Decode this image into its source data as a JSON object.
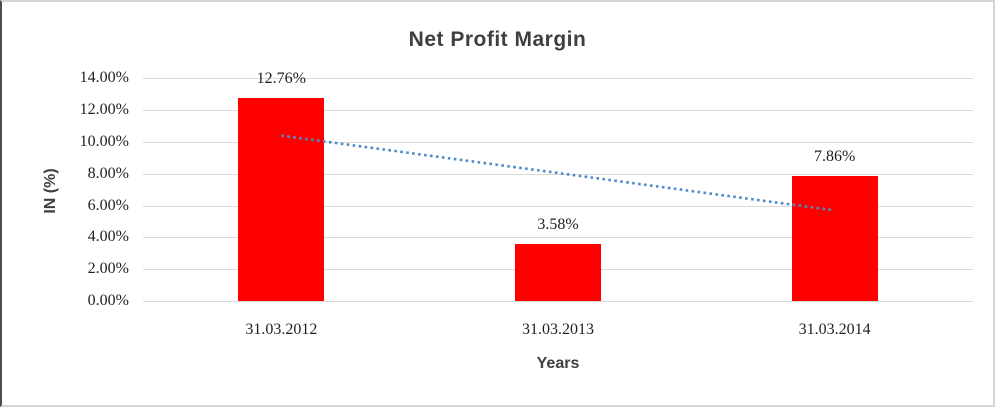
{
  "chart_data": {
    "type": "bar",
    "title": "Net Profit Margin",
    "xlabel": "Years",
    "ylabel": "IN (%)",
    "categories": [
      "31.03.2012",
      "31.03.2013",
      "31.03.2014"
    ],
    "values": [
      12.76,
      3.58,
      7.86
    ],
    "data_labels": [
      "12.76%",
      "3.58%",
      "7.86%"
    ],
    "y_ticks": [
      "0.00%",
      "2.00%",
      "4.00%",
      "6.00%",
      "8.00%",
      "10.00%",
      "12.00%",
      "14.00%"
    ],
    "ylim": [
      0,
      14
    ],
    "y_tick_step": 2,
    "grid": true,
    "legend": "none",
    "bar_color": "#ff0000",
    "gridline_color": "#d9d9d9",
    "title_color": "#3f3f3f",
    "tick_label_color": "#1f1f1f",
    "trendline": {
      "style": "dotted",
      "color": "#4f8bc9",
      "start_value": 10.4,
      "end_value": 5.7
    }
  }
}
